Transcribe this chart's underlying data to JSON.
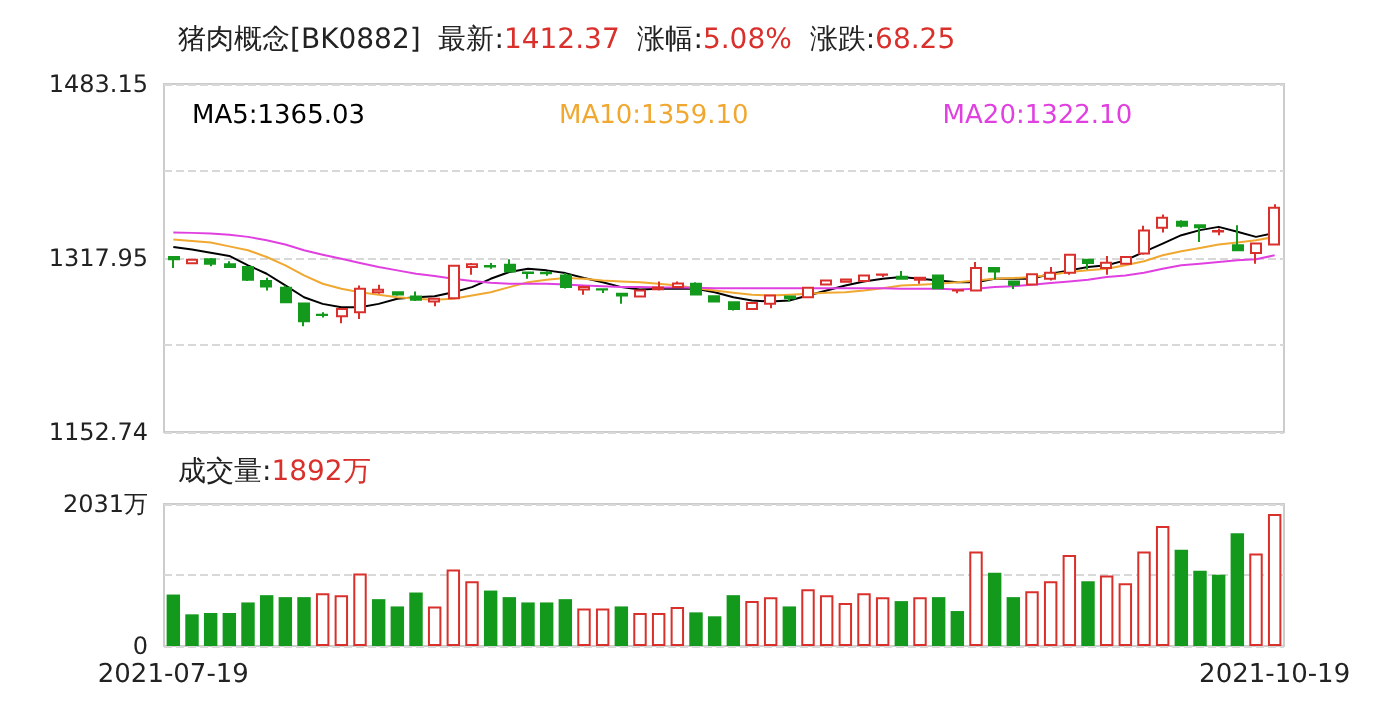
{
  "chart_data": [
    {
      "type": "candlestick",
      "title": "猪肉概念[BK0882]  最新:1412.37  涨幅:5.08%  涨跌:68.25",
      "categories": [
        "2021-07-19",
        null,
        null,
        null,
        null,
        null,
        null,
        null,
        null,
        null,
        null,
        null,
        null,
        null,
        null,
        null,
        null,
        null,
        null,
        null,
        null,
        null,
        null,
        null,
        null,
        null,
        null,
        null,
        null,
        null,
        null,
        null,
        null,
        null,
        null,
        null,
        null,
        null,
        null,
        null,
        null,
        null,
        null,
        null,
        null,
        null,
        null,
        null,
        null,
        null,
        null,
        null,
        null,
        null,
        null,
        null,
        null,
        null,
        null,
        "2021-10-19"
      ],
      "ohlc": [
        [
          1318.9,
          1319.2,
          1308.4,
          1316.7
        ],
        [
          1312.9,
          1317,
          1312,
          1316.4
        ],
        [
          1316.7,
          1317.9,
          1310,
          1312.5
        ],
        [
          1311.9,
          1314.8,
          1308.7,
          1309.4
        ],
        [
          1309.4,
          1310.3,
          1296,
          1297.3
        ],
        [
          1296,
          1299.2,
          1287.1,
          1290.9
        ],
        [
          1289.6,
          1291.9,
          1275,
          1276
        ],
        [
          1274.7,
          1275,
          1253.1,
          1257.8
        ],
        [
          1264.1,
          1266.5,
          1261.4,
          1263.8
        ],
        [
          1262.6,
          1270,
          1256,
          1269.6
        ],
        [
          1266.4,
          1291.9,
          1260.1,
          1288.7
        ],
        [
          1285.5,
          1292.5,
          1284,
          1287.8
        ],
        [
          1285.5,
          1286,
          1282,
          1283.3
        ],
        [
          1281.4,
          1286.1,
          1277,
          1278.2
        ],
        [
          1276.6,
          1279.5,
          1272.2,
          1279.2
        ],
        [
          1279.8,
          1311,
          1279,
          1310.6
        ],
        [
          1309.4,
          1313.2,
          1302,
          1311.9
        ],
        [
          1310.3,
          1313.2,
          1307.8,
          1309.8
        ],
        [
          1311.6,
          1316.7,
          1305,
          1305.2
        ],
        [
          1304.1,
          1305,
          1298.2,
          1303.6
        ],
        [
          1304,
          1305.5,
          1301,
          1303.5
        ],
        [
          1301.4,
          1303.6,
          1289,
          1290.3
        ],
        [
          1288,
          1291.5,
          1283,
          1290.3
        ],
        [
          1288.3,
          1289.3,
          1284.8,
          1288
        ],
        [
          1283.9,
          1284,
          1274.4,
          1282.3
        ],
        [
          1281.4,
          1287.5,
          1281,
          1287
        ],
        [
          1288.3,
          1295.7,
          1287,
          1289.9
        ],
        [
          1290.3,
          1295.7,
          1289.5,
          1293.8
        ],
        [
          1293.5,
          1295,
          1283,
          1283.3
        ],
        [
          1281.7,
          1282,
          1276,
          1276.6
        ],
        [
          1276,
          1276.3,
          1268,
          1269.6
        ],
        [
          1269.6,
          1276,
          1269,
          1275.3
        ],
        [
          1274.4,
          1282.6,
          1270.2,
          1282.3
        ],
        [
          1281.4,
          1282,
          1276.6,
          1279.8
        ],
        [
          1280.7,
          1290,
          1280,
          1289.6
        ],
        [
          1292.8,
          1297,
          1292,
          1296.6
        ],
        [
          1295.4,
          1298,
          1295,
          1297.6
        ],
        [
          1296,
          1302,
          1295.7,
          1301.4
        ],
        [
          1302,
          1303,
          1300,
          1302.3
        ],
        [
          1300.1,
          1305.5,
          1297.9,
          1298.2
        ],
        [
          1297.3,
          1299.5,
          1293.5,
          1299.2
        ],
        [
          1301.4,
          1302,
          1289,
          1289.3
        ],
        [
          1287,
          1288,
          1284.5,
          1287.3
        ],
        [
          1287,
          1314.1,
          1286.5,
          1308.4
        ],
        [
          1308.4,
          1308.7,
          1297.6,
          1305.2
        ],
        [
          1295.7,
          1296,
          1288.6,
          1292.5
        ],
        [
          1292.8,
          1303,
          1292,
          1302.4
        ],
        [
          1298.2,
          1309.4,
          1296.6,
          1304
        ],
        [
          1304,
          1322,
          1302,
          1321.1
        ],
        [
          1316.4,
          1316.7,
          1307.1,
          1313.2
        ],
        [
          1308.4,
          1319.9,
          1302,
          1313.5
        ],
        [
          1312.5,
          1319.9,
          1312,
          1318.9
        ],
        [
          1322.1,
          1348.5,
          1321,
          1344
        ],
        [
          1346.6,
          1359.3,
          1342.1,
          1356.1
        ],
        [
          1352.3,
          1353.9,
          1347,
          1348.5
        ],
        [
          1349.1,
          1350,
          1333.2,
          1347.2
        ],
        [
          1343.2,
          1346,
          1339.6,
          1343.6
        ],
        [
          1330,
          1349,
          1325,
          1325.3
        ],
        [
          1322.7,
          1332,
          1312.5,
          1331.6
        ],
        [
          1330.7,
          1368.9,
          1330,
          1365.7
        ]
      ],
      "colors": [
        "#139a1c",
        "#d9302c",
        "#139a1c",
        "#139a1c",
        "#139a1c",
        "#139a1c",
        "#139a1c",
        "#139a1c",
        "#139a1c",
        "#d9302c",
        "#d9302c",
        "#d9302c",
        "#139a1c",
        "#139a1c",
        "#d9302c",
        "#d9302c",
        "#d9302c",
        "#139a1c",
        "#139a1c",
        "#139a1c",
        "#139a1c",
        "#139a1c",
        "#d9302c",
        "#139a1c",
        "#139a1c",
        "#d9302c",
        "#d9302c",
        "#d9302c",
        "#139a1c",
        "#139a1c",
        "#139a1c",
        "#d9302c",
        "#d9302c",
        "#139a1c",
        "#d9302c",
        "#d9302c",
        "#d9302c",
        "#d9302c",
        "#d9302c",
        "#139a1c",
        "#d9302c",
        "#139a1c",
        "#d9302c",
        "#d9302c",
        "#139a1c",
        "#139a1c",
        "#d9302c",
        "#d9302c",
        "#d9302c",
        "#139a1c",
        "#d9302c",
        "#d9302c",
        "#d9302c",
        "#d9302c",
        "#139a1c",
        "#139a1c",
        "#d9302c",
        "#139a1c",
        "#d9302c",
        "#d9302c"
      ],
      "series": [
        {
          "type": "line",
          "name": "MA5:1365.03",
          "color": "#000000",
          "values": [
            1328.4,
            1326,
            1323,
            1319.9,
            1311,
            1303,
            1292,
            1280.7,
            1274.4,
            1271.2,
            1271.2,
            1274.4,
            1279.2,
            1280.7,
            1281.7,
            1285.5,
            1290.3,
            1298.2,
            1304.6,
            1307.8,
            1306.2,
            1303.6,
            1298.9,
            1295,
            1290.3,
            1288,
            1288.7,
            1288.7,
            1288.7,
            1285.5,
            1280.7,
            1277.6,
            1276.6,
            1277.6,
            1282.3,
            1287.1,
            1291.9,
            1295.7,
            1298.2,
            1299.8,
            1298.2,
            1296.6,
            1295,
            1295,
            1298.2,
            1298.2,
            1298.2,
            1303,
            1306.2,
            1309.4,
            1311,
            1315.7,
            1323.7,
            1331.6,
            1339.6,
            1344.4,
            1347.5,
            1342.8,
            1338,
            1341.8
          ]
        },
        {
          "type": "line",
          "name": "MA10:1359.10",
          "color": "#f0a830",
          "values": [
            1335.4,
            1334,
            1332.6,
            1329,
            1325.3,
            1318.9,
            1311,
            1301.4,
            1293.5,
            1288.7,
            1285.5,
            1283,
            1280.7,
            1279.2,
            1278.2,
            1279.2,
            1282.3,
            1285.5,
            1290.3,
            1295,
            1297.3,
            1298.9,
            1298.2,
            1296.6,
            1295.7,
            1295,
            1293.5,
            1291.9,
            1289.3,
            1287.1,
            1284.9,
            1283,
            1282.3,
            1283,
            1283.9,
            1284.9,
            1285.5,
            1287.1,
            1289.3,
            1291.9,
            1292.5,
            1293.5,
            1295,
            1296.6,
            1298.2,
            1298.9,
            1299.8,
            1302.1,
            1304.6,
            1306.2,
            1307.8,
            1311,
            1314.8,
            1320.5,
            1324.3,
            1327.5,
            1330.7,
            1332.6,
            1334.8,
            1338
          ]
        },
        {
          "type": "line",
          "name": "MA20:1322.10",
          "color": "#e040e0",
          "values": [
            1342.1,
            1341.8,
            1341.2,
            1340,
            1338,
            1334.8,
            1330.7,
            1325.3,
            1321.1,
            1317.3,
            1313.2,
            1309.4,
            1306.2,
            1303,
            1300.8,
            1298.2,
            1296,
            1294.4,
            1293.5,
            1293.5,
            1293.5,
            1292.8,
            1291.9,
            1291.2,
            1290.3,
            1290.3,
            1290,
            1290,
            1289.6,
            1289.3,
            1289.3,
            1289.3,
            1289.3,
            1289.3,
            1289.3,
            1289.3,
            1289.3,
            1289.3,
            1289.3,
            1288.7,
            1288.7,
            1288.7,
            1288,
            1288.7,
            1290.3,
            1291.2,
            1292.5,
            1294.1,
            1295.7,
            1297.3,
            1299.8,
            1301.4,
            1303.9,
            1307.8,
            1311,
            1312.5,
            1314.1,
            1315.7,
            1316.7,
            1320.5
          ]
        }
      ],
      "ylim": [
        1152.74,
        1483.15
      ],
      "yticks": [
        1152.74,
        {
          "value": 1235.345,
          "label": null
        },
        1317.95,
        {
          "value": 1400.55,
          "label": null
        },
        1483.15
      ],
      "grid": "y",
      "legend": "top",
      "tick_labels": "y"
    },
    {
      "type": "bar",
      "title": "成交量:1892万",
      "categories": [
        "2021-07-19",
        null,
        null,
        null,
        null,
        null,
        null,
        null,
        null,
        null,
        null,
        null,
        null,
        null,
        null,
        null,
        null,
        null,
        null,
        null,
        null,
        null,
        null,
        null,
        null,
        null,
        null,
        null,
        null,
        null,
        null,
        null,
        null,
        null,
        null,
        null,
        null,
        null,
        null,
        null,
        null,
        null,
        null,
        null,
        null,
        null,
        null,
        null,
        null,
        null,
        null,
        null,
        null,
        null,
        null,
        null,
        null,
        null,
        null,
        "2021-10-19"
      ],
      "values": [
        736,
        453,
        472,
        472,
        623,
        727,
        699,
        699,
        755,
        727,
        1038,
        670,
        566,
        765,
        566,
        1095,
        925,
        793,
        699,
        623,
        623,
        670,
        538,
        538,
        566,
        472,
        472,
        557,
        481,
        425,
        727,
        642,
        699,
        566,
        812,
        727,
        614,
        755,
        699,
        642,
        699,
        699,
        500,
        1350,
        1048,
        699,
        784,
        925,
        1303,
        925,
        1010,
        897,
        1350,
        1718,
        1378,
        1076,
        1020,
        1614,
        1322,
        1888
      ],
      "colors": [
        "#139a1c",
        "#139a1c",
        "#139a1c",
        "#139a1c",
        "#139a1c",
        "#139a1c",
        "#139a1c",
        "#139a1c",
        "#d9302c",
        "#d9302c",
        "#d9302c",
        "#139a1c",
        "#139a1c",
        "#139a1c",
        "#d9302c",
        "#d9302c",
        "#d9302c",
        "#139a1c",
        "#139a1c",
        "#139a1c",
        "#139a1c",
        "#139a1c",
        "#d9302c",
        "#d9302c",
        "#139a1c",
        "#d9302c",
        "#d9302c",
        "#d9302c",
        "#139a1c",
        "#139a1c",
        "#139a1c",
        "#d9302c",
        "#d9302c",
        "#139a1c",
        "#d9302c",
        "#d9302c",
        "#d9302c",
        "#d9302c",
        "#d9302c",
        "#139a1c",
        "#d9302c",
        "#139a1c",
        "#139a1c",
        "#d9302c",
        "#139a1c",
        "#139a1c",
        "#d9302c",
        "#d9302c",
        "#d9302c",
        "#139a1c",
        "#d9302c",
        "#d9302c",
        "#d9302c",
        "#d9302c",
        "#139a1c",
        "#139a1c",
        "#139a1c",
        "#139a1c",
        "#d9302c",
        "#d9302c"
      ],
      "ylim": [
        0,
        2031
      ],
      "yticks": [
        0,
        {
          "value": 1015.5,
          "label": null
        },
        {
          "value": 2031,
          "label": "2031万"
        }
      ],
      "grid": "y"
    }
  ]
}
